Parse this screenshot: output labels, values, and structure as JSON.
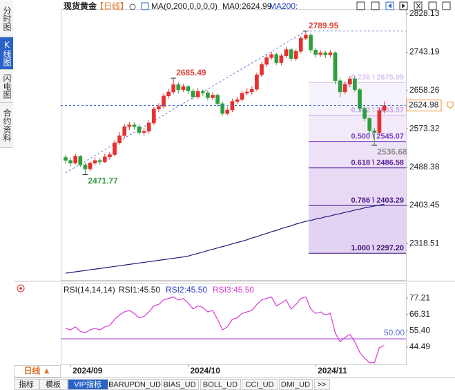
{
  "ui": {
    "side_tabs": [
      "分时图",
      "K线图",
      "闪电图",
      "合约资料"
    ],
    "side_active": 1,
    "period_button": "日线 ▲",
    "bottom_tabs": [
      "指标",
      "模板",
      "VIP指标",
      "BARUPDN_UD",
      "BIAS_UD",
      "BOLL_UD",
      "CCI_UD",
      "DMI_UD",
      ">>"
    ],
    "bottom_active": 2
  },
  "chart_data": [
    {
      "type": "candlestick",
      "title": "现货黄金",
      "period": "【日线】",
      "indicator": "MA(0,200,0,0,0,0)",
      "legend": [
        {
          "text": "MA0:2624.99",
          "color": "#222222"
        },
        {
          "text": "MA200:",
          "color": "#2040c0"
        }
      ],
      "categories": [
        null,
        "2024/09",
        null,
        null,
        null,
        null,
        null,
        null,
        null,
        null,
        null,
        null,
        null,
        null,
        null,
        null,
        null,
        null,
        null,
        null,
        null,
        null,
        null,
        null,
        null,
        "2024/10",
        null,
        null,
        null,
        null,
        null,
        null,
        null,
        null,
        null,
        null,
        null,
        null,
        null,
        null,
        null,
        null,
        null,
        null,
        null,
        null,
        null,
        null,
        null,
        null,
        null,
        "2024/11",
        null,
        null,
        null,
        null,
        null,
        null,
        null,
        null,
        null,
        null,
        null,
        null,
        null,
        null
      ],
      "up_color": "#e8302f",
      "down_color": "#2e9e3e",
      "ohlc": [
        [
          2510,
          2516,
          2496,
          2503
        ],
        [
          2503,
          2509,
          2490,
          2497
        ],
        [
          2497,
          2518,
          2494,
          2512
        ],
        [
          2512,
          2515,
          2488,
          2493
        ],
        [
          2493,
          2498,
          2471.77,
          2484
        ],
        [
          2484,
          2501,
          2480,
          2497
        ],
        [
          2497,
          2510,
          2492,
          2503
        ],
        [
          2503,
          2508,
          2494,
          2500
        ],
        [
          2500,
          2518,
          2497,
          2511
        ],
        [
          2511,
          2522,
          2505,
          2516
        ],
        [
          2516,
          2548,
          2512,
          2542
        ],
        [
          2542,
          2566,
          2538,
          2558
        ],
        [
          2558,
          2584,
          2553,
          2578
        ],
        [
          2578,
          2589,
          2570,
          2582
        ],
        [
          2582,
          2588,
          2571,
          2578
        ],
        [
          2578,
          2583,
          2560,
          2565
        ],
        [
          2565,
          2575,
          2558,
          2568
        ],
        [
          2568,
          2592,
          2563,
          2586
        ],
        [
          2586,
          2622,
          2582,
          2617
        ],
        [
          2617,
          2630,
          2610,
          2623
        ],
        [
          2623,
          2652,
          2618,
          2646
        ],
        [
          2646,
          2662,
          2640,
          2655
        ],
        [
          2655,
          2685.49,
          2650,
          2671
        ],
        [
          2671,
          2676,
          2652,
          2660
        ],
        [
          2660,
          2673,
          2655,
          2667
        ],
        [
          2667,
          2670,
          2650,
          2657
        ],
        [
          2657,
          2662,
          2638,
          2644
        ],
        [
          2644,
          2663,
          2640,
          2656
        ],
        [
          2656,
          2661,
          2646,
          2653
        ],
        [
          2653,
          2658,
          2636,
          2642
        ],
        [
          2642,
          2654,
          2637,
          2648
        ],
        [
          2648,
          2652,
          2622,
          2629
        ],
        [
          2629,
          2634,
          2602,
          2607
        ],
        [
          2607,
          2621,
          2603,
          2615
        ],
        [
          2615,
          2640,
          2610,
          2634
        ],
        [
          2634,
          2644,
          2628,
          2638
        ],
        [
          2638,
          2658,
          2633,
          2652
        ],
        [
          2652,
          2663,
          2647,
          2655
        ],
        [
          2655,
          2668,
          2649,
          2661
        ],
        [
          2661,
          2698,
          2657,
          2693
        ],
        [
          2693,
          2722,
          2688,
          2716
        ],
        [
          2716,
          2737,
          2710,
          2731
        ],
        [
          2731,
          2744,
          2726,
          2738
        ],
        [
          2738,
          2742,
          2715,
          2720
        ],
        [
          2720,
          2740,
          2714,
          2735
        ],
        [
          2735,
          2755,
          2730,
          2749
        ],
        [
          2749,
          2753,
          2722,
          2729
        ],
        [
          2729,
          2750,
          2724,
          2745
        ],
        [
          2745,
          2779,
          2740,
          2774
        ],
        [
          2774,
          2789.95,
          2770,
          2781
        ],
        [
          2781,
          2785,
          2742,
          2748
        ],
        [
          2748,
          2753,
          2731,
          2738
        ],
        [
          2738,
          2748,
          2733,
          2742
        ],
        [
          2742,
          2747,
          2730,
          2737
        ],
        [
          2737,
          2748,
          2732,
          2742
        ],
        [
          2742,
          2745,
          2672,
          2680
        ],
        [
          2680,
          2686,
          2643,
          2655
        ],
        [
          2655,
          2678,
          2650,
          2672
        ],
        [
          2672,
          2690,
          2666,
          2684
        ],
        [
          2684,
          2690,
          2655,
          2660
        ],
        [
          2660,
          2664,
          2612,
          2618
        ],
        [
          2618,
          2624,
          2590,
          2596
        ],
        [
          2596,
          2600,
          2562,
          2569
        ],
        [
          2569,
          2575,
          2536.68,
          2565
        ],
        [
          2565,
          2620,
          2561,
          2614
        ],
        [
          2614,
          2634,
          2608,
          2624.98
        ]
      ],
      "ma": {
        "color": "#1a1a7a",
        "values": [
          2253,
          2254.5,
          2256,
          2257.5,
          2259,
          2260.5,
          2262,
          2263.5,
          2265,
          2266.5,
          2268,
          2269.5,
          2271,
          2272.5,
          2274,
          2275.5,
          2277,
          2278.5,
          2280,
          2281.5,
          2283,
          2284.5,
          2286,
          2287.5,
          2289,
          2291,
          2294,
          2297,
          2300,
          2303,
          2306,
          2309,
          2312,
          2315,
          2318,
          2321,
          2324,
          2327,
          2331,
          2334,
          2338,
          2341,
          2345,
          2348,
          2352,
          2355,
          2358,
          2362,
          2365,
          2368,
          2370,
          2373,
          2375,
          2378,
          2380,
          2383,
          2385,
          2388,
          2390,
          2393,
          2395,
          2398,
          2400,
          2402,
          2404,
          2406
        ]
      },
      "ylim": [
        2237.8,
        2838.9
      ],
      "yticks": [
        2828.13,
        2743.19,
        2658.26,
        2573.32,
        2488.38,
        2403.45,
        2318.51
      ],
      "last_price": 2624.98,
      "peak_labels": [
        {
          "at": 49,
          "side": "high",
          "color": "#d9443a"
        },
        {
          "at": 22,
          "side": "high",
          "color": "#d9443a"
        },
        {
          "at": 4,
          "side": "low",
          "color": "#3a9a4a"
        },
        {
          "at": 63,
          "side": "low",
          "color": "#8a8a8a"
        }
      ],
      "fibonacci": [
        {
          "value": 2675.95,
          "label": "0.236 \\ 2675.95",
          "color": "#d9bff0"
        },
        {
          "value": 2603.57,
          "label": "0.382 \\ 2603.57",
          "color": "#c9a8ea"
        },
        {
          "value": 2545.07,
          "label": "0.500 \\ 2545.07",
          "color": "#7a3cc0"
        },
        {
          "value": 2486.58,
          "label": "0.618 \\ 2486.58",
          "color": "#5a1f9a"
        },
        {
          "value": 2403.29,
          "label": "0.786 \\ 2403.29",
          "color": "#4a1a8a"
        },
        {
          "value": 2297.2,
          "label": "1.000 \\ 2297.20",
          "color": "#3a1070"
        }
      ]
    },
    {
      "type": "line",
      "title": "RSI(14,14,14)",
      "legend": [
        {
          "text": "RSI1:45.50",
          "color": "#222222"
        },
        {
          "text": "RSI2:45.50",
          "color": "#2b3cd0"
        },
        {
          "text": "RSI3:45.50",
          "color": "#d63ad6"
        }
      ],
      "color": "#d63ad6",
      "values": [
        57,
        56,
        58,
        55,
        54,
        56,
        57,
        56,
        58,
        59,
        63,
        66,
        68,
        69,
        67,
        64,
        65,
        68,
        72,
        73,
        76,
        77,
        78,
        76,
        77,
        74,
        70,
        72,
        71,
        68,
        69,
        63,
        56,
        58,
        63,
        64,
        67,
        68,
        69,
        73,
        76,
        77,
        78,
        72,
        74,
        76,
        70,
        73,
        77,
        78,
        70,
        67,
        68,
        66,
        67,
        54,
        48,
        51,
        53,
        48,
        41,
        37,
        34,
        34,
        44,
        45.5
      ],
      "ylim": [
        32.9,
        87.0
      ],
      "yticks": [
        77.21,
        66.31,
        {
          "value": 55.4,
          "label": "55.40"
        },
        44.49
      ],
      "reference": {
        "value": 50,
        "label": "50.00",
        "color": "#9a3ad0",
        "label_color": "#5b6bd8"
      }
    }
  ]
}
